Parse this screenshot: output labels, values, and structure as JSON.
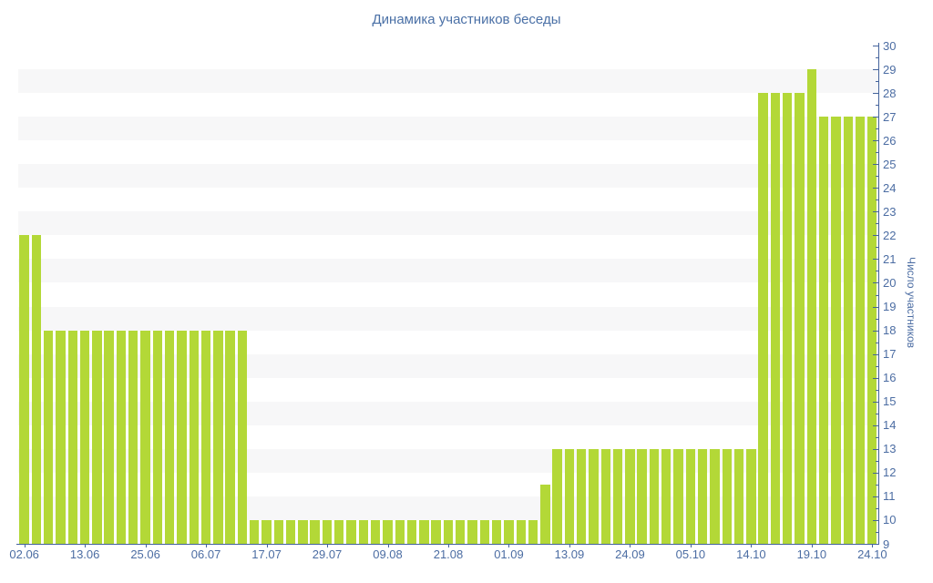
{
  "title": "Динамика участников беседы",
  "chart_data": {
    "type": "bar",
    "title": "Динамика участников беседы",
    "ylabel": "Число участников",
    "xlabel": "",
    "ylim": [
      9,
      30
    ],
    "y_tick_step": 1,
    "y_minor_tick_step": 0.5,
    "grid": "alternating light horizontal bands, one unit tall, on even-to-odd intervals",
    "legend": "none",
    "bar_color": "#b3d837",
    "stripe_color": "#f7f7f8",
    "axis_color": "#44639c",
    "label_color": "#4c6da3",
    "title_color": "#4a70a6",
    "x_tick_every": 5,
    "x_tick_labels": [
      "02.06",
      "13.06",
      "25.06",
      "06.07",
      "17.07",
      "29.07",
      "09.08",
      "21.08",
      "01.09",
      "13.09",
      "24.09",
      "05.10",
      "14.10",
      "19.10",
      "24.10"
    ],
    "values": [
      22,
      22,
      18,
      18,
      18,
      18,
      18,
      18,
      18,
      18,
      18,
      18,
      18,
      18,
      18,
      18,
      18,
      18,
      18,
      10,
      10,
      10,
      10,
      10,
      10,
      10,
      10,
      10,
      10,
      10,
      10,
      10,
      10,
      10,
      10,
      10,
      10,
      10,
      10,
      10,
      10,
      10,
      10,
      11.5,
      13,
      13,
      13,
      13,
      13,
      13,
      13,
      13,
      13,
      13,
      13,
      13,
      13,
      13,
      13,
      13,
      13,
      28,
      28,
      28,
      28,
      29,
      27,
      27,
      27,
      27,
      27
    ]
  }
}
